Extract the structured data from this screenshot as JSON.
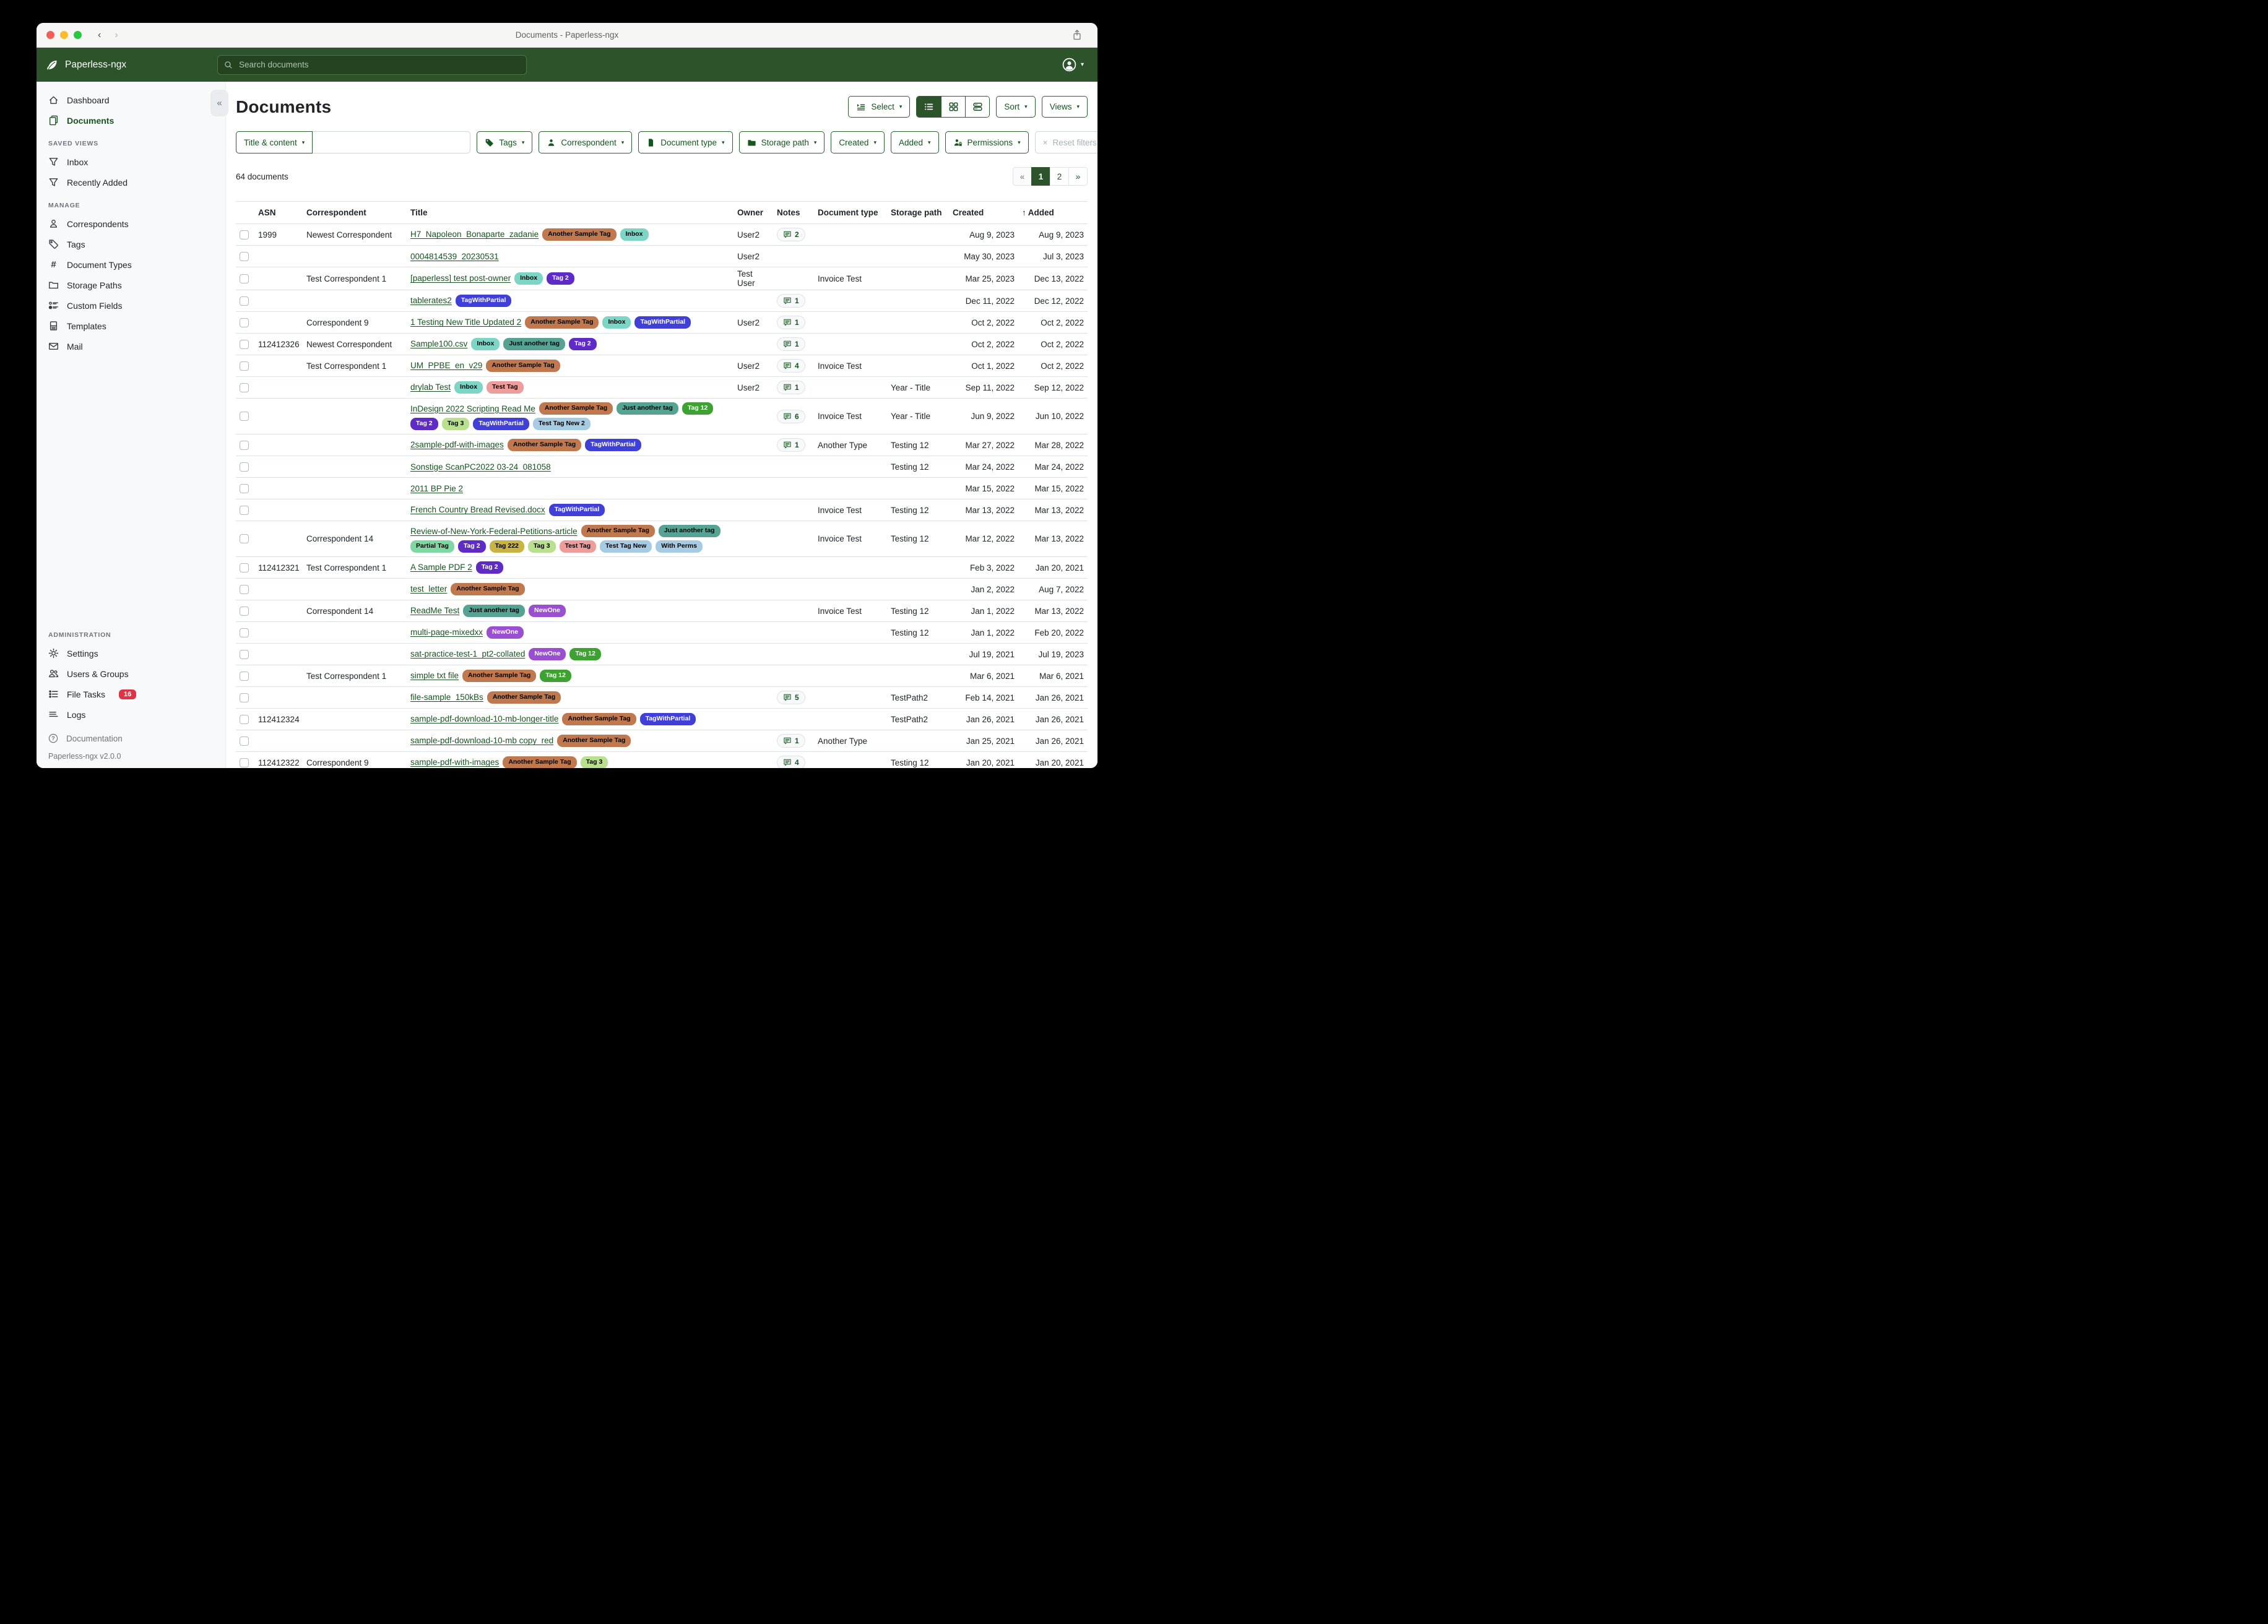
{
  "window": {
    "title": "Documents - Paperless-ngx"
  },
  "navbar": {
    "brand": "Paperless-ngx",
    "search_placeholder": "Search documents"
  },
  "sidebar": {
    "primary": [
      {
        "label": "Dashboard",
        "icon": "dashboard",
        "active": false
      },
      {
        "label": "Documents",
        "icon": "documents",
        "active": true
      }
    ],
    "sections": [
      {
        "heading": "SAVED VIEWS",
        "items": [
          {
            "label": "Inbox",
            "icon": "filter"
          },
          {
            "label": "Recently Added",
            "icon": "filter"
          }
        ]
      },
      {
        "heading": "MANAGE",
        "items": [
          {
            "label": "Correspondents",
            "icon": "person"
          },
          {
            "label": "Tags",
            "icon": "tag"
          },
          {
            "label": "Document Types",
            "icon": "hash"
          },
          {
            "label": "Storage Paths",
            "icon": "folder"
          },
          {
            "label": "Custom Fields",
            "icon": "custom-fields"
          },
          {
            "label": "Templates",
            "icon": "template"
          },
          {
            "label": "Mail",
            "icon": "mail"
          }
        ]
      },
      {
        "heading": "ADMINISTRATION",
        "items": [
          {
            "label": "Settings",
            "icon": "gear"
          },
          {
            "label": "Users & Groups",
            "icon": "people"
          },
          {
            "label": "File Tasks",
            "icon": "tasks",
            "badge": "16"
          },
          {
            "label": "Logs",
            "icon": "logs"
          }
        ]
      }
    ],
    "footer": {
      "documentation": "Documentation",
      "version": "Paperless-ngx v2.0.0"
    }
  },
  "page": {
    "title": "Documents"
  },
  "toolbar": {
    "select": "Select",
    "sort": "Sort",
    "views": "Views"
  },
  "filters": {
    "title_content": "Title & content",
    "search_value": "",
    "tags": "Tags",
    "correspondent": "Correspondent",
    "document_type": "Document type",
    "storage_path": "Storage path",
    "created": "Created",
    "added": "Added",
    "permissions": "Permissions",
    "reset": "Reset filters"
  },
  "status": {
    "count": "64 documents"
  },
  "pagination": {
    "prev": "«",
    "pages": [
      "1",
      "2"
    ],
    "active": "1",
    "next": "»"
  },
  "table": {
    "columns": [
      "ASN",
      "Correspondent",
      "Title",
      "Owner",
      "Notes",
      "Document type",
      "Storage path",
      "Created",
      "Added"
    ],
    "sort_column": "Added",
    "sort_arrow": "↑",
    "rows": [
      {
        "asn": "1999",
        "corr": "Newest Correspondent",
        "title": "H7_Napoleon_Bonaparte_zadanie",
        "tags": [
          "Another Sample Tag",
          "Inbox"
        ],
        "owner": "User2",
        "notes": "2",
        "doctype": "",
        "storage": "",
        "created": "Aug 9, 2023",
        "added": "Aug 9, 2023"
      },
      {
        "asn": "",
        "corr": "",
        "title": "0004814539_20230531",
        "tags": [],
        "owner": "User2",
        "notes": "",
        "doctype": "",
        "storage": "",
        "created": "May 30, 2023",
        "added": "Jul 3, 2023"
      },
      {
        "asn": "",
        "corr": "Test Correspondent 1",
        "title": "[paperless] test post-owner",
        "tags": [
          "Inbox",
          "Tag 2"
        ],
        "owner": "Test User",
        "notes": "",
        "doctype": "Invoice Test",
        "storage": "",
        "created": "Mar 25, 2023",
        "added": "Dec 13, 2022"
      },
      {
        "asn": "",
        "corr": "",
        "title": "tablerates2",
        "tags": [
          "TagWithPartial"
        ],
        "owner": "",
        "notes": "1",
        "doctype": "",
        "storage": "",
        "created": "Dec 11, 2022",
        "added": "Dec 12, 2022"
      },
      {
        "asn": "",
        "corr": "Correspondent 9",
        "title": "1 Testing New Title Updated 2",
        "tags": [
          "Another Sample Tag",
          "Inbox",
          "TagWithPartial"
        ],
        "owner": "User2",
        "notes": "1",
        "doctype": "",
        "storage": "",
        "created": "Oct 2, 2022",
        "added": "Oct 2, 2022"
      },
      {
        "asn": "112412326",
        "corr": "Newest Correspondent",
        "title": "Sample100.csv",
        "tags": [
          "Inbox",
          "Just another tag",
          "Tag 2"
        ],
        "owner": "",
        "notes": "1",
        "doctype": "",
        "storage": "",
        "created": "Oct 2, 2022",
        "added": "Oct 2, 2022"
      },
      {
        "asn": "",
        "corr": "Test Correspondent 1",
        "title": "UM_PPBE_en_v29",
        "tags": [
          "Another Sample Tag"
        ],
        "owner": "User2",
        "notes": "4",
        "doctype": "Invoice Test",
        "storage": "",
        "created": "Oct 1, 2022",
        "added": "Oct 2, 2022"
      },
      {
        "asn": "",
        "corr": "",
        "title": "drylab Test",
        "tags": [
          "Inbox",
          "Test Tag"
        ],
        "owner": "User2",
        "notes": "1",
        "doctype": "",
        "storage": "Year - Title",
        "created": "Sep 11, 2022",
        "added": "Sep 12, 2022"
      },
      {
        "asn": "",
        "corr": "",
        "title": "InDesign 2022 Scripting Read Me",
        "tags": [
          "Another Sample Tag",
          "Just another tag",
          "Tag 12",
          "Tag 2",
          "Tag 3",
          "TagWithPartial",
          "Test Tag New 2"
        ],
        "owner": "",
        "notes": "6",
        "doctype": "Invoice Test",
        "storage": "Year - Title",
        "created": "Jun 9, 2022",
        "added": "Jun 10, 2022",
        "tall": true
      },
      {
        "asn": "",
        "corr": "",
        "title": "2sample-pdf-with-images",
        "tags": [
          "Another Sample Tag",
          "TagWithPartial"
        ],
        "owner": "",
        "notes": "1",
        "doctype": "Another Type",
        "storage": "Testing 12",
        "created": "Mar 27, 2022",
        "added": "Mar 28, 2022"
      },
      {
        "asn": "",
        "corr": "",
        "title": "Sonstige ScanPC2022 03-24_081058",
        "tags": [],
        "owner": "",
        "notes": "",
        "doctype": "",
        "storage": "Testing 12",
        "created": "Mar 24, 2022",
        "added": "Mar 24, 2022"
      },
      {
        "asn": "",
        "corr": "",
        "title": "2011 BP Pie 2",
        "tags": [],
        "owner": "",
        "notes": "",
        "doctype": "",
        "storage": "",
        "created": "Mar 15, 2022",
        "added": "Mar 15, 2022"
      },
      {
        "asn": "",
        "corr": "",
        "title": "French Country Bread Revised.docx",
        "tags": [
          "TagWithPartial"
        ],
        "owner": "",
        "notes": "",
        "doctype": "Invoice Test",
        "storage": "Testing 12",
        "created": "Mar 13, 2022",
        "added": "Mar 13, 2022"
      },
      {
        "asn": "",
        "corr": "Correspondent 14",
        "title": "Review-of-New-York-Federal-Petitions-article",
        "tags": [
          "Another Sample Tag",
          "Just another tag",
          "Partial Tag",
          "Tag 2",
          "Tag 222",
          "Tag 3",
          "Test Tag",
          "Test Tag New",
          "With Perms"
        ],
        "owner": "",
        "notes": "",
        "doctype": "Invoice Test",
        "storage": "Testing 12",
        "created": "Mar 12, 2022",
        "added": "Mar 13, 2022",
        "tall": true
      },
      {
        "asn": "112412321",
        "corr": "Test Correspondent 1",
        "title": "A Sample PDF 2",
        "tags": [
          "Tag 2"
        ],
        "owner": "",
        "notes": "",
        "doctype": "",
        "storage": "",
        "created": "Feb 3, 2022",
        "added": "Jan 20, 2021"
      },
      {
        "asn": "",
        "corr": "",
        "title": "test_letter",
        "tags": [
          "Another Sample Tag"
        ],
        "owner": "",
        "notes": "",
        "doctype": "",
        "storage": "",
        "created": "Jan 2, 2022",
        "added": "Aug 7, 2022"
      },
      {
        "asn": "",
        "corr": "Correspondent 14",
        "title": "ReadMe Test",
        "tags": [
          "Just another tag",
          "NewOne"
        ],
        "owner": "",
        "notes": "",
        "doctype": "Invoice Test",
        "storage": "Testing 12",
        "created": "Jan 1, 2022",
        "added": "Mar 13, 2022"
      },
      {
        "asn": "",
        "corr": "",
        "title": "multi-page-mixedxx",
        "tags": [
          "NewOne"
        ],
        "owner": "",
        "notes": "",
        "doctype": "",
        "storage": "Testing 12",
        "created": "Jan 1, 2022",
        "added": "Feb 20, 2022"
      },
      {
        "asn": "",
        "corr": "",
        "title": "sat-practice-test-1_pt2-collated",
        "tags": [
          "NewOne",
          "Tag 12"
        ],
        "owner": "",
        "notes": "",
        "doctype": "",
        "storage": "",
        "created": "Jul 19, 2021",
        "added": "Jul 19, 2023"
      },
      {
        "asn": "",
        "corr": "Test Correspondent 1",
        "title": "simple txt file",
        "tags": [
          "Another Sample Tag",
          "Tag 12"
        ],
        "owner": "",
        "notes": "",
        "doctype": "",
        "storage": "",
        "created": "Mar 6, 2021",
        "added": "Mar 6, 2021"
      },
      {
        "asn": "",
        "corr": "",
        "title": "file-sample_150kBs",
        "tags": [
          "Another Sample Tag"
        ],
        "owner": "",
        "notes": "5",
        "doctype": "",
        "storage": "TestPath2",
        "created": "Feb 14, 2021",
        "added": "Jan 26, 2021"
      },
      {
        "asn": "112412324",
        "corr": "",
        "title": "sample-pdf-download-10-mb-longer-title",
        "tags": [
          "Another Sample Tag",
          "TagWithPartial"
        ],
        "owner": "",
        "notes": "",
        "doctype": "",
        "storage": "TestPath2",
        "created": "Jan 26, 2021",
        "added": "Jan 26, 2021"
      },
      {
        "asn": "",
        "corr": "",
        "title": "sample-pdf-download-10-mb copy_red",
        "tags": [
          "Another Sample Tag"
        ],
        "owner": "",
        "notes": "1",
        "doctype": "Another Type",
        "storage": "",
        "created": "Jan 25, 2021",
        "added": "Jan 26, 2021"
      },
      {
        "asn": "112412322",
        "corr": "Correspondent 9",
        "title": "sample-pdf-with-images",
        "tags": [
          "Another Sample Tag",
          "Tag 3"
        ],
        "owner": "",
        "notes": "4",
        "doctype": "",
        "storage": "Testing 12",
        "created": "Jan 20, 2021",
        "added": "Jan 20, 2021"
      }
    ]
  },
  "tag_colors": {
    "Another Sample Tag": {
      "bg": "#c0784f",
      "fg": "#000000"
    },
    "Inbox": {
      "bg": "#7dd5c5",
      "fg": "#000000"
    },
    "Tag 2": {
      "bg": "#5e2bc7",
      "fg": "#ffffff"
    },
    "TagWithPartial": {
      "bg": "#4040d8",
      "fg": "#ffffff"
    },
    "Just another tag": {
      "bg": "#56a394",
      "fg": "#000000"
    },
    "Tag 12": {
      "bg": "#3ea232",
      "fg": "#ffffff"
    },
    "Tag 3": {
      "bg": "#b8e08e",
      "fg": "#000000"
    },
    "Test Tag": {
      "bg": "#ee9d9d",
      "fg": "#000000"
    },
    "Test Tag New 2": {
      "bg": "#a8cbe4",
      "fg": "#000000"
    },
    "Partial Tag": {
      "bg": "#7fd8a2",
      "fg": "#000000"
    },
    "Tag 222": {
      "bg": "#c8b442",
      "fg": "#000000"
    },
    "Test Tag New": {
      "bg": "#a8cbe4",
      "fg": "#000000"
    },
    "With Perms": {
      "bg": "#a8cbe4",
      "fg": "#000000"
    },
    "NewOne": {
      "bg": "#9a4fd0",
      "fg": "#ffffff"
    }
  },
  "colors": {
    "brand_green": "#2c5329",
    "accent_green": "#17541f",
    "badge_red": "#dc3545"
  }
}
